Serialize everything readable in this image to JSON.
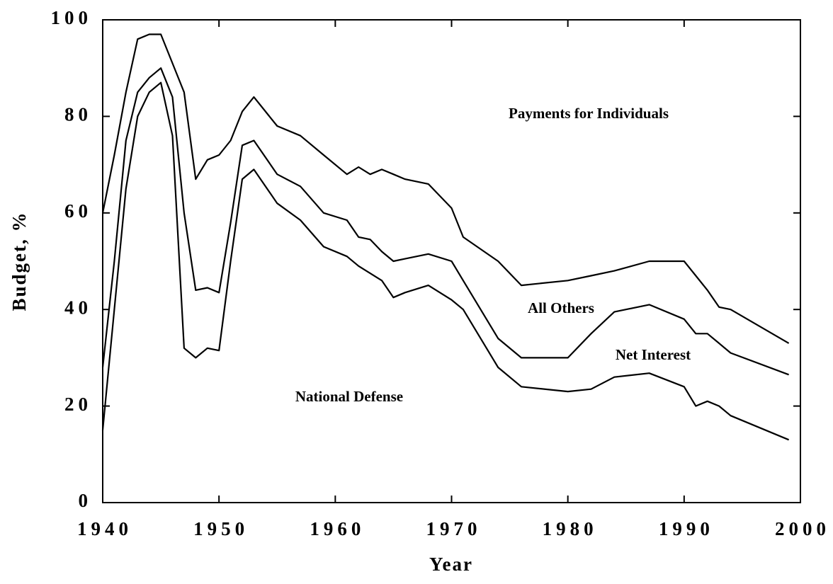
{
  "chart_data": {
    "type": "stacked-line",
    "x_label": "Year",
    "y_label": "Budget, %",
    "annotation": "Payments for Individuals",
    "x": [
      1940,
      1941,
      1942,
      1943,
      1944,
      1945,
      1946,
      1947,
      1948,
      1949,
      1950,
      1951,
      1952,
      1953,
      1955,
      1957,
      1959,
      1961,
      1962,
      1963,
      1964,
      1965,
      1966,
      1968,
      1970,
      1971,
      1974,
      1976,
      1980,
      1982,
      1984,
      1987,
      1990,
      1991,
      1992,
      1993,
      1994,
      1999
    ],
    "series": [
      {
        "name": "National Defense",
        "color": "#000000",
        "values": [
          15,
          40,
          65,
          80,
          85,
          87,
          76,
          32,
          30,
          32,
          31.5,
          50,
          67,
          69,
          62,
          58.5,
          53,
          51,
          49,
          47.5,
          46,
          42.5,
          43.5,
          45,
          42,
          40,
          28,
          24,
          23,
          23.5,
          26,
          26.8,
          24,
          20,
          21,
          20,
          18,
          13
        ]
      },
      {
        "name": "Net Interest",
        "color": "#000000",
        "values": [
          13,
          10,
          10,
          5,
          3,
          3,
          8,
          28,
          14,
          12.5,
          12,
          8,
          7,
          6,
          6,
          7,
          7,
          7.5,
          6,
          7,
          6,
          7.5,
          7,
          6.5,
          8,
          6,
          6,
          6,
          7,
          11.5,
          13.5,
          14.2,
          14,
          15,
          14,
          13,
          13,
          13.5
        ]
      },
      {
        "name": "All Others",
        "color": "#000000",
        "values": [
          32,
          22,
          10,
          11,
          9,
          7,
          7,
          25,
          23,
          26.5,
          28.5,
          17,
          7,
          9,
          10,
          10.5,
          12,
          9.5,
          14.5,
          13.5,
          17,
          18,
          16.5,
          14.5,
          11,
          9,
          16,
          15,
          16,
          12,
          8.5,
          9,
          12,
          12,
          9,
          7.5,
          9,
          6.5
        ]
      }
    ],
    "xlim": [
      1940,
      2000
    ],
    "xticks": [
      1940,
      1950,
      1960,
      1970,
      1980,
      1990,
      2000
    ],
    "ylim": [
      0,
      100
    ],
    "yticks": [
      0,
      20,
      40,
      60,
      80,
      100
    ]
  }
}
